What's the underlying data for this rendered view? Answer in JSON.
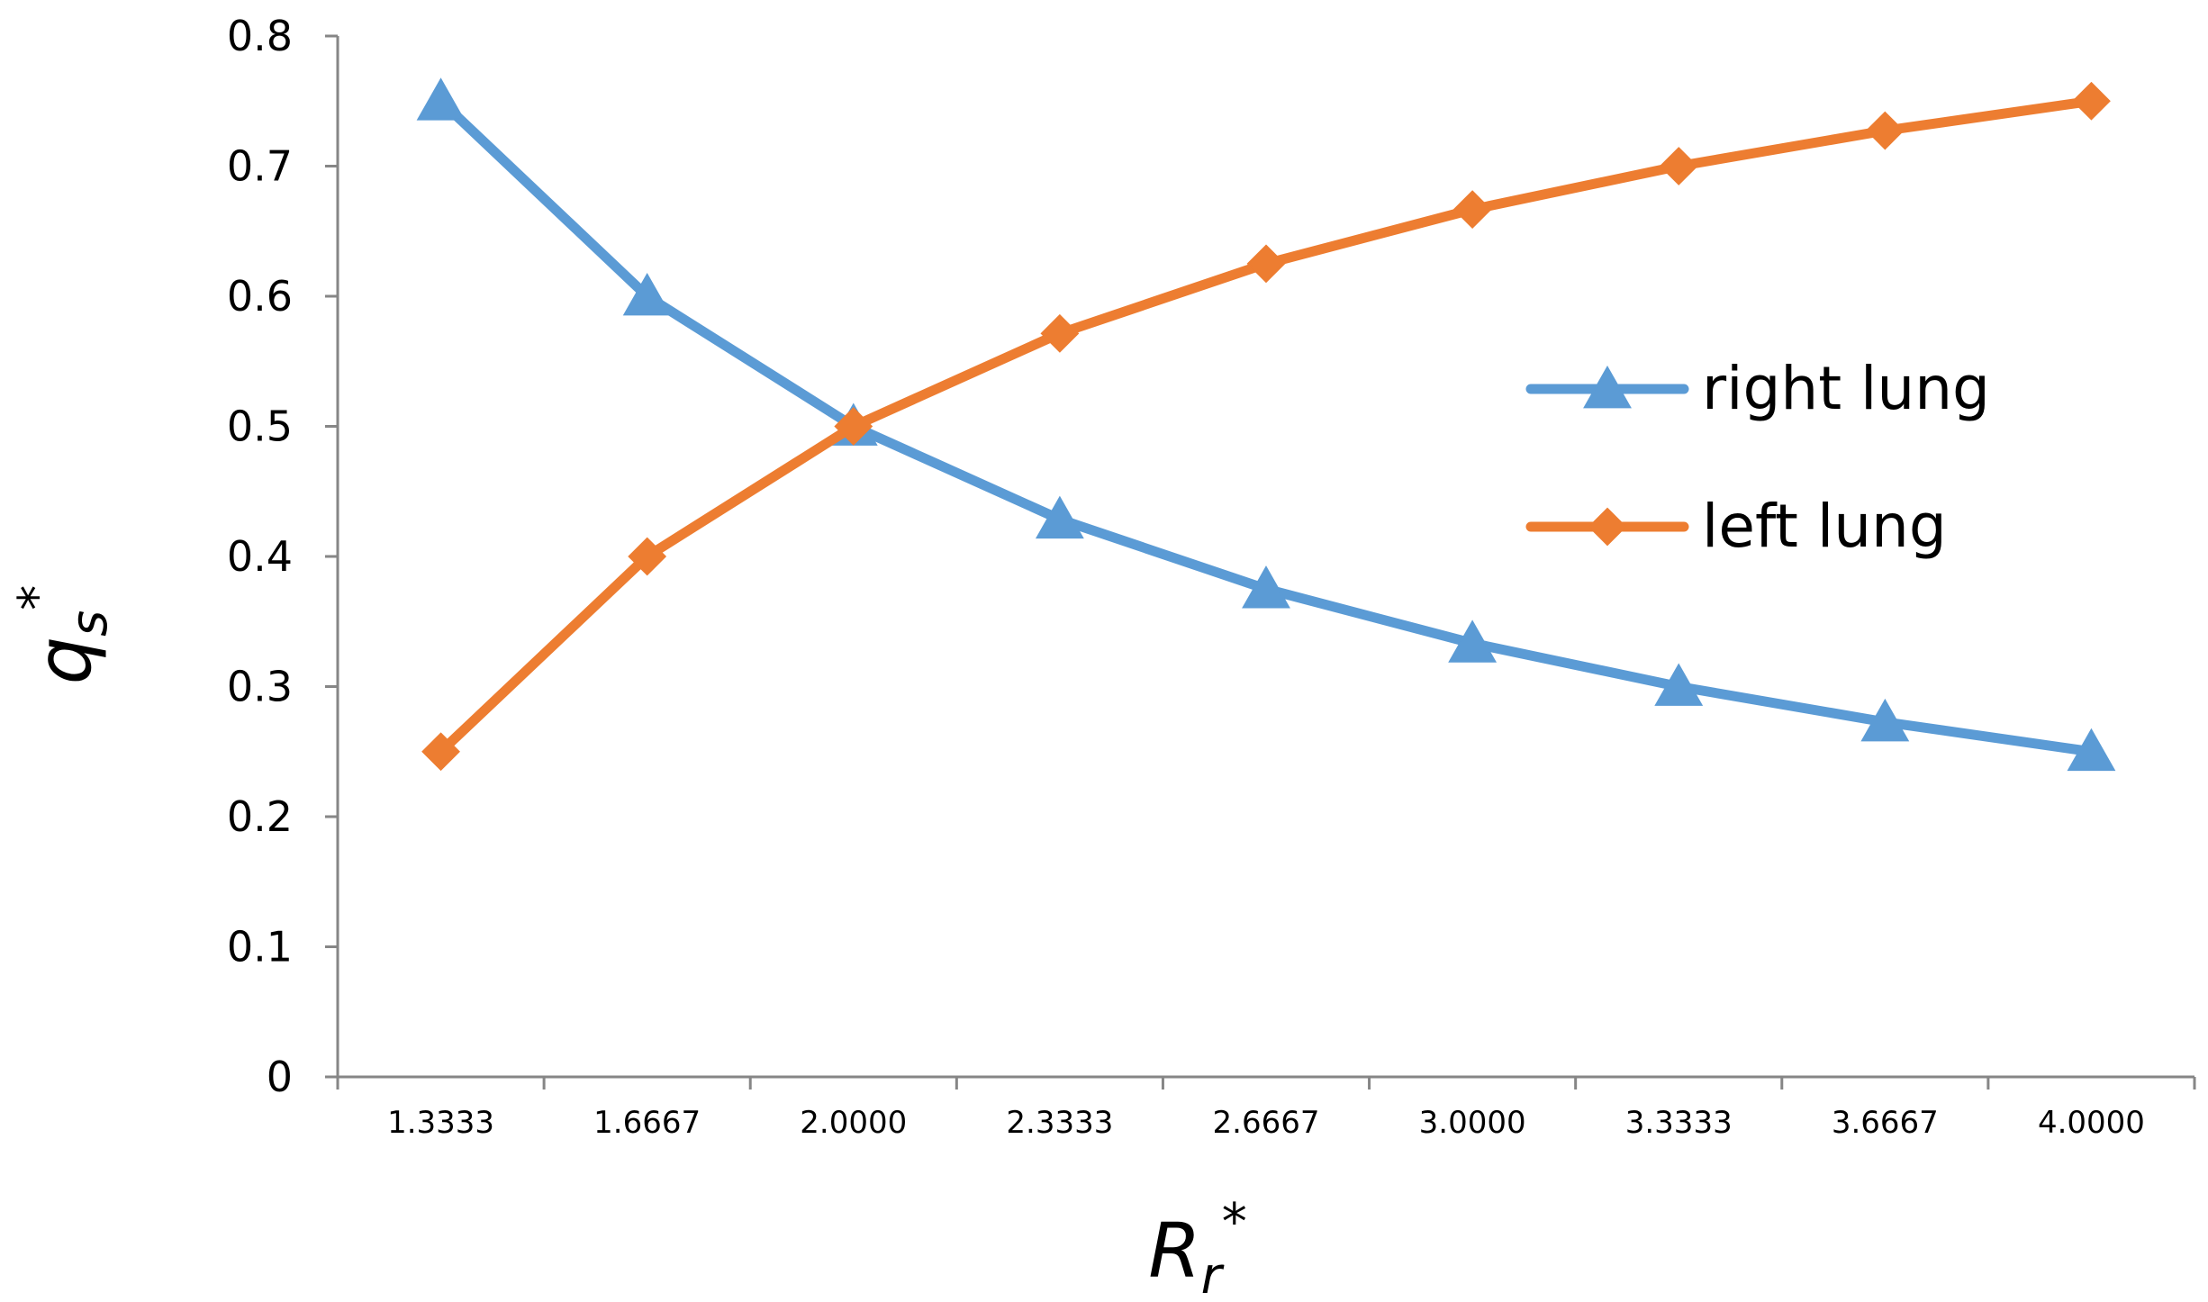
{
  "chart_data": {
    "type": "line",
    "title": "",
    "x": [
      "1.3333",
      "1.6667",
      "2.0000",
      "2.3333",
      "2.6667",
      "3.0000",
      "3.3333",
      "3.6667",
      "4.0000"
    ],
    "xlabel": {
      "main": "R",
      "sub": "r",
      "sup": "*"
    },
    "ylabel": {
      "main": "q",
      "sub": "s",
      "sup": "*"
    },
    "ylim": [
      0,
      0.8
    ],
    "yticks": [
      "0",
      "0.1",
      "0.2",
      "0.3",
      "0.4",
      "0.5",
      "0.6",
      "0.7",
      "0.8"
    ],
    "grid": false,
    "legend_position": "right",
    "series": [
      {
        "name": "right lung",
        "color": "#5B9BD5",
        "marker": "triangle",
        "values": [
          0.75,
          0.6,
          0.5,
          0.4286,
          0.375,
          0.3333,
          0.3,
          0.2727,
          0.25
        ]
      },
      {
        "name": "left lung",
        "color": "#ED7D31",
        "marker": "diamond",
        "values": [
          0.25,
          0.4,
          0.5,
          0.5714,
          0.625,
          0.6667,
          0.7,
          0.7273,
          0.75
        ]
      }
    ]
  }
}
